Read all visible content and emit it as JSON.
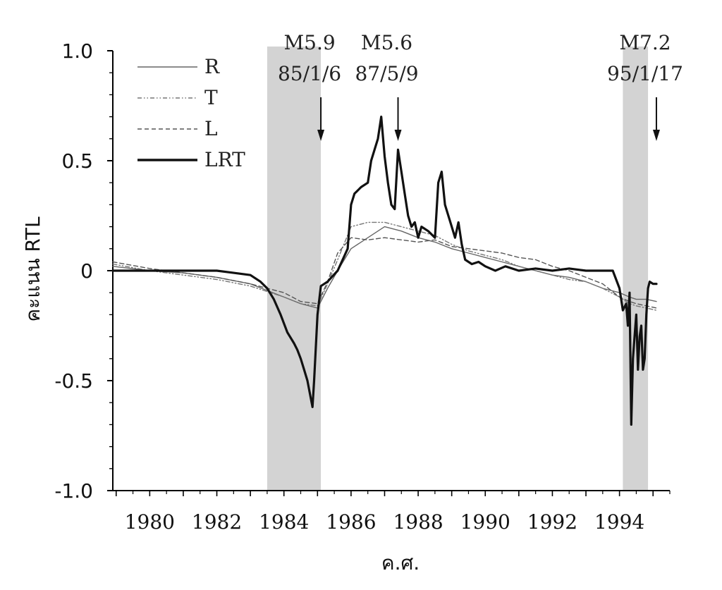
{
  "chart_data": {
    "type": "line",
    "title": "",
    "xlabel": "ค.ศ.",
    "ylabel": "คะแนน RTL",
    "xlim": [
      1978.9,
      1995.5
    ],
    "ylim": [
      -1.0,
      1.0
    ],
    "x_ticks": [
      1980,
      1982,
      1984,
      1986,
      1988,
      1990,
      1992,
      1994
    ],
    "x_tick_labels": [
      "1980",
      "1982",
      "1984",
      "1986",
      "1988",
      "1990",
      "1992",
      "1994"
    ],
    "y_ticks": [
      1.0,
      0.5,
      0,
      -0.5,
      -1.0
    ],
    "y_tick_labels": [
      "1.0",
      "0.5",
      "0",
      "-0.5",
      "-1.0"
    ],
    "grid": false,
    "legend_position": "top-left",
    "legend": [
      "R",
      "T",
      "L",
      "LRT"
    ],
    "shaded_regions": [
      {
        "x_start": 1983.5,
        "x_end": 1985.1
      },
      {
        "x_start": 1994.1,
        "x_end": 1994.85
      }
    ],
    "events": [
      {
        "magnitude": "M5.9",
        "date": "85/1/6",
        "x": 1985.1
      },
      {
        "magnitude": "M5.6",
        "date": "87/5/9",
        "x": 1987.4
      },
      {
        "magnitude": "M7.2",
        "date": "95/1/17",
        "x": 1995.1
      }
    ],
    "series": [
      {
        "name": "LRT",
        "style": "solid-thick",
        "x": [
          1978.9,
          1980,
          1981,
          1982,
          1982.5,
          1983,
          1983.3,
          1983.5,
          1983.7,
          1983.9,
          1984.1,
          1984.3,
          1984.4,
          1984.5,
          1984.6,
          1984.7,
          1984.8,
          1984.85,
          1984.9,
          1985.0,
          1985.1,
          1985.3,
          1985.6,
          1985.9,
          1986.0,
          1986.1,
          1986.3,
          1986.5,
          1986.6,
          1986.7,
          1986.8,
          1986.9,
          1987.0,
          1987.1,
          1987.2,
          1987.3,
          1987.4,
          1987.5,
          1987.6,
          1987.7,
          1987.8,
          1987.9,
          1988.0,
          1988.1,
          1988.3,
          1988.5,
          1988.6,
          1988.7,
          1988.8,
          1988.9,
          1989.0,
          1989.1,
          1989.2,
          1989.3,
          1989.4,
          1989.6,
          1989.8,
          1990.0,
          1990.3,
          1990.6,
          1991.0,
          1991.5,
          1992.0,
          1992.5,
          1993.0,
          1993.5,
          1993.8,
          1994.0,
          1994.1,
          1994.2,
          1994.25,
          1994.3,
          1994.35,
          1994.4,
          1994.45,
          1994.5,
          1994.55,
          1994.6,
          1994.65,
          1994.7,
          1994.75,
          1994.8,
          1994.85,
          1994.9,
          1995.0,
          1995.1
        ],
        "values": [
          0.0,
          0.0,
          0.0,
          0.0,
          -0.01,
          -0.02,
          -0.05,
          -0.08,
          -0.13,
          -0.2,
          -0.28,
          -0.33,
          -0.36,
          -0.4,
          -0.45,
          -0.5,
          -0.58,
          -0.62,
          -0.5,
          -0.2,
          -0.07,
          -0.05,
          0.0,
          0.1,
          0.3,
          0.35,
          0.38,
          0.4,
          0.5,
          0.55,
          0.6,
          0.7,
          0.52,
          0.4,
          0.3,
          0.28,
          0.55,
          0.45,
          0.35,
          0.25,
          0.2,
          0.22,
          0.15,
          0.2,
          0.18,
          0.15,
          0.4,
          0.45,
          0.3,
          0.25,
          0.2,
          0.15,
          0.22,
          0.12,
          0.05,
          0.03,
          0.04,
          0.02,
          0.0,
          0.02,
          0.0,
          0.01,
          0.0,
          0.01,
          0.0,
          0.0,
          0.0,
          -0.08,
          -0.18,
          -0.15,
          -0.25,
          -0.1,
          -0.7,
          -0.4,
          -0.3,
          -0.2,
          -0.45,
          -0.3,
          -0.25,
          -0.45,
          -0.4,
          -0.2,
          -0.08,
          -0.05,
          -0.06,
          -0.06
        ]
      },
      {
        "name": "R",
        "style": "solid-thin",
        "x": [
          1978.9,
          1980,
          1981,
          1982,
          1983,
          1984,
          1984.5,
          1985.0,
          1985.3,
          1985.6,
          1986.0,
          1986.5,
          1987.0,
          1987.5,
          1988.0,
          1988.5,
          1989.0,
          1989.5,
          1990.0,
          1990.5,
          1991.0,
          1991.5,
          1992.0,
          1992.5,
          1993.0,
          1993.5,
          1994.0,
          1994.3,
          1994.5,
          1994.8,
          1995.1
        ],
        "values": [
          0.02,
          0.0,
          -0.01,
          -0.03,
          -0.06,
          -0.12,
          -0.15,
          -0.17,
          -0.08,
          0.0,
          0.1,
          0.15,
          0.2,
          0.18,
          0.15,
          0.13,
          0.1,
          0.08,
          0.06,
          0.04,
          0.02,
          0.0,
          -0.02,
          -0.03,
          -0.05,
          -0.08,
          -0.1,
          -0.12,
          -0.13,
          -0.13,
          -0.14
        ]
      },
      {
        "name": "T",
        "style": "dash-dot",
        "x": [
          1978.9,
          1980,
          1981,
          1982,
          1983,
          1984,
          1984.5,
          1985.0,
          1985.3,
          1985.6,
          1986.0,
          1986.5,
          1987.0,
          1987.5,
          1988.0,
          1988.5,
          1989.0,
          1989.5,
          1990.0,
          1990.5,
          1991.0,
          1991.5,
          1992.0,
          1992.5,
          1993.0,
          1993.5,
          1994.0,
          1994.3,
          1994.5,
          1994.8,
          1995.1
        ],
        "values": [
          0.03,
          0.0,
          -0.02,
          -0.04,
          -0.07,
          -0.12,
          -0.15,
          -0.16,
          -0.06,
          0.05,
          0.2,
          0.22,
          0.22,
          0.2,
          0.18,
          0.16,
          0.12,
          0.09,
          0.07,
          0.05,
          0.02,
          0.0,
          -0.02,
          -0.04,
          -0.05,
          -0.08,
          -0.12,
          -0.15,
          -0.16,
          -0.17,
          -0.18
        ]
      },
      {
        "name": "L",
        "style": "dashed",
        "x": [
          1978.9,
          1980,
          1981,
          1982,
          1983,
          1984,
          1984.5,
          1985.0,
          1985.3,
          1985.6,
          1986.0,
          1986.5,
          1987.0,
          1987.5,
          1988.0,
          1988.5,
          1989.0,
          1989.5,
          1990.0,
          1990.5,
          1991.0,
          1991.5,
          1992.0,
          1992.5,
          1993.0,
          1993.5,
          1994.0,
          1994.3,
          1994.5,
          1994.8,
          1995.1
        ],
        "values": [
          0.04,
          0.01,
          -0.01,
          -0.03,
          -0.06,
          -0.1,
          -0.14,
          -0.15,
          -0.05,
          0.08,
          0.15,
          0.14,
          0.15,
          0.14,
          0.13,
          0.14,
          0.11,
          0.1,
          0.09,
          0.08,
          0.06,
          0.05,
          0.02,
          0.0,
          -0.03,
          -0.06,
          -0.12,
          -0.14,
          -0.15,
          -0.16,
          -0.17
        ]
      }
    ]
  }
}
